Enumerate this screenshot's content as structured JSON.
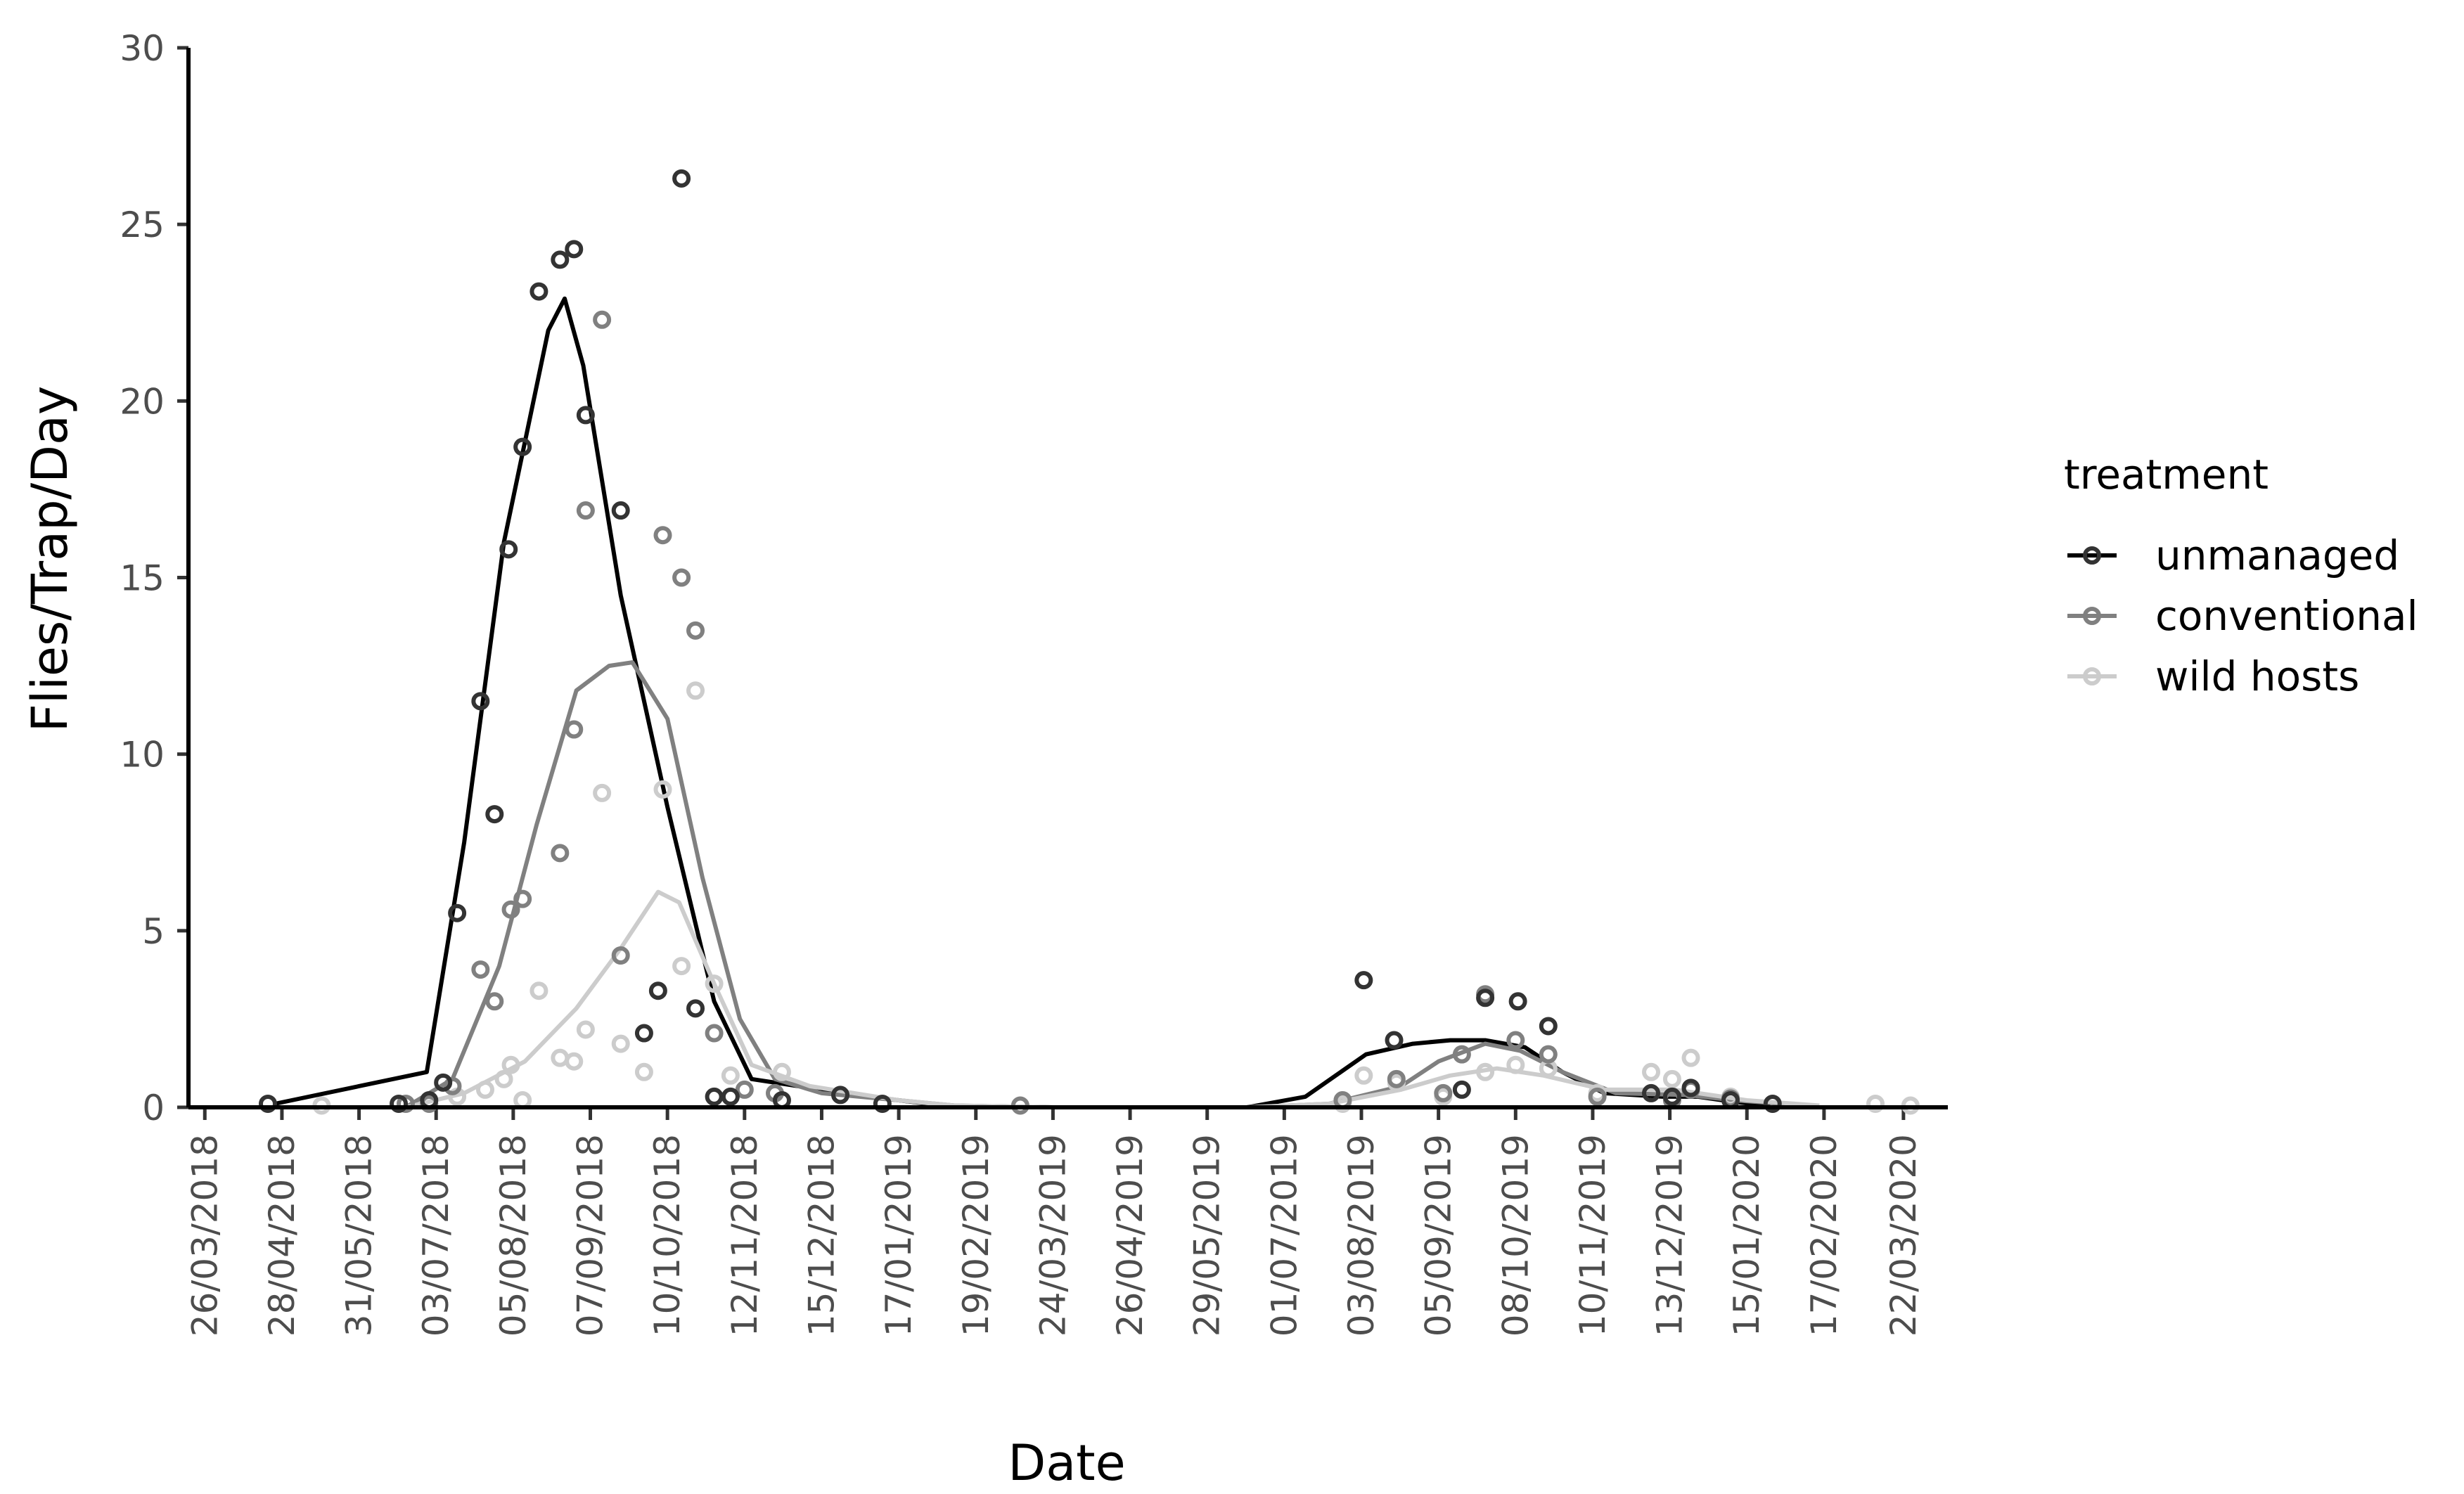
{
  "chart_data": {
    "type": "scatter",
    "xlabel": "Date",
    "ylabel": "Flies/Trap/Day",
    "ylim": [
      0,
      30
    ],
    "yticks": [
      0,
      5,
      10,
      15,
      20,
      25,
      30
    ],
    "xlim": [
      "2018-03-19",
      "2020-04-10"
    ],
    "xticks": [
      "2018-03-26",
      "2018-04-28",
      "2018-05-31",
      "2018-07-03",
      "2018-08-05",
      "2018-09-07",
      "2018-10-10",
      "2018-11-12",
      "2018-12-15",
      "2019-01-17",
      "2019-02-19",
      "2019-03-24",
      "2019-04-26",
      "2019-05-29",
      "2019-07-01",
      "2019-08-03",
      "2019-09-05",
      "2019-10-08",
      "2019-11-10",
      "2019-12-13",
      "2020-01-15",
      "2020-02-17",
      "2020-03-22"
    ],
    "xtick_labels": [
      "26/03/2018",
      "28/04/2018",
      "31/05/2018",
      "03/07/2018",
      "05/08/2018",
      "07/09/2018",
      "10/10/2018",
      "12/11/2018",
      "15/12/2018",
      "17/01/2019",
      "19/02/2019",
      "24/03/2019",
      "26/04/2019",
      "29/05/2019",
      "01/07/2019",
      "03/08/2019",
      "05/09/2019",
      "08/10/2019",
      "10/11/2019",
      "13/12/2019",
      "15/01/2020",
      "17/02/2020",
      "22/03/2020"
    ],
    "grid": false,
    "legend": {
      "title": "treatment",
      "placement": "right"
    },
    "series": [
      {
        "name": "unmanaged",
        "color": "#333333",
        "line_color": "#000000",
        "points": [
          [
            "2018-04-22",
            0.1
          ],
          [
            "2018-06-17",
            0.1
          ],
          [
            "2018-06-30",
            0.2
          ],
          [
            "2018-07-06",
            0.7
          ],
          [
            "2018-07-12",
            5.5
          ],
          [
            "2018-07-22",
            11.5
          ],
          [
            "2018-07-28",
            8.3
          ],
          [
            "2018-08-03",
            15.8
          ],
          [
            "2018-08-09",
            18.7
          ],
          [
            "2018-08-16",
            23.1
          ],
          [
            "2018-08-25",
            24.0
          ],
          [
            "2018-08-31",
            24.3
          ],
          [
            "2018-09-05",
            19.6
          ],
          [
            "2018-09-20",
            16.9
          ],
          [
            "2018-09-30",
            2.1
          ],
          [
            "2018-10-06",
            3.3
          ],
          [
            "2018-10-16",
            26.3
          ],
          [
            "2018-10-22",
            2.8
          ],
          [
            "2018-10-30",
            0.3
          ],
          [
            "2018-11-06",
            0.3
          ],
          [
            "2018-11-28",
            0.2
          ],
          [
            "2018-12-23",
            0.35
          ],
          [
            "2019-01-10",
            0.1
          ],
          [
            "2019-08-04",
            3.6
          ],
          [
            "2019-08-17",
            1.9
          ],
          [
            "2019-09-15",
            0.5
          ],
          [
            "2019-09-25",
            3.1
          ],
          [
            "2019-10-09",
            3.0
          ],
          [
            "2019-10-22",
            2.3
          ],
          [
            "2019-12-05",
            0.4
          ],
          [
            "2019-12-14",
            0.3
          ],
          [
            "2019-12-22",
            0.55
          ],
          [
            "2020-01-08",
            0.2
          ],
          [
            "2020-01-26",
            0.1
          ]
        ],
        "smooth": [
          [
            "2018-04-25",
            0.1
          ],
          [
            "2018-06-29",
            1.0
          ],
          [
            "2018-07-15",
            7.5
          ],
          [
            "2018-08-01",
            16.0
          ],
          [
            "2018-08-20",
            22.0
          ],
          [
            "2018-08-27",
            22.9
          ],
          [
            "2018-09-04",
            21.0
          ],
          [
            "2018-09-20",
            14.5
          ],
          [
            "2018-10-10",
            8.5
          ],
          [
            "2018-10-30",
            3.0
          ],
          [
            "2018-11-15",
            0.8
          ],
          [
            "2018-12-15",
            0.5
          ],
          [
            "2019-01-17",
            0.2
          ],
          [
            "2019-02-05",
            0.05
          ],
          [
            "2019-03-24",
            0.0
          ],
          [
            "2019-04-26",
            0.0
          ],
          [
            "2019-06-15",
            0.0
          ],
          [
            "2019-07-10",
            0.3
          ],
          [
            "2019-08-05",
            1.5
          ],
          [
            "2019-08-25",
            1.8
          ],
          [
            "2019-09-10",
            1.9
          ],
          [
            "2019-09-25",
            1.9
          ],
          [
            "2019-10-12",
            1.7
          ],
          [
            "2019-10-28",
            1.0
          ],
          [
            "2019-11-15",
            0.4
          ],
          [
            "2019-12-10",
            0.3
          ],
          [
            "2019-12-25",
            0.3
          ],
          [
            "2020-01-10",
            0.15
          ],
          [
            "2020-01-25",
            0.05
          ]
        ]
      },
      {
        "name": "conventional",
        "color": "#808080",
        "line_color": "#808080",
        "points": [
          [
            "2018-06-20",
            0.1
          ],
          [
            "2018-06-30",
            0.1
          ],
          [
            "2018-07-10",
            0.6
          ],
          [
            "2018-07-22",
            3.9
          ],
          [
            "2018-07-28",
            3.0
          ],
          [
            "2018-08-04",
            5.6
          ],
          [
            "2018-08-09",
            5.9
          ],
          [
            "2018-08-25",
            7.2
          ],
          [
            "2018-08-31",
            10.7
          ],
          [
            "2018-09-05",
            16.9
          ],
          [
            "2018-09-12",
            22.3
          ],
          [
            "2018-09-20",
            4.3
          ],
          [
            "2018-10-08",
            16.2
          ],
          [
            "2018-10-16",
            15.0
          ],
          [
            "2018-10-22",
            13.5
          ],
          [
            "2018-10-30",
            2.1
          ],
          [
            "2018-11-12",
            0.5
          ],
          [
            "2018-11-25",
            0.4
          ],
          [
            "2019-03-10",
            0.05
          ],
          [
            "2019-07-26",
            0.2
          ],
          [
            "2019-08-18",
            0.8
          ],
          [
            "2019-09-07",
            0.4
          ],
          [
            "2019-09-15",
            1.5
          ],
          [
            "2019-09-25",
            3.2
          ],
          [
            "2019-10-08",
            1.9
          ],
          [
            "2019-10-22",
            1.5
          ],
          [
            "2019-11-12",
            0.3
          ],
          [
            "2019-12-14",
            0.2
          ],
          [
            "2019-12-22",
            0.5
          ],
          [
            "2020-01-08",
            0.25
          ]
        ],
        "smooth": [
          [
            "2018-06-20",
            0.0
          ],
          [
            "2018-07-10",
            0.8
          ],
          [
            "2018-07-30",
            4.0
          ],
          [
            "2018-08-15",
            8.0
          ],
          [
            "2018-09-01",
            11.8
          ],
          [
            "2018-09-15",
            12.5
          ],
          [
            "2018-09-25",
            12.6
          ],
          [
            "2018-10-10",
            11.0
          ],
          [
            "2018-10-25",
            6.5
          ],
          [
            "2018-11-10",
            2.5
          ],
          [
            "2018-11-25",
            0.8
          ],
          [
            "2018-12-15",
            0.4
          ],
          [
            "2019-01-17",
            0.2
          ],
          [
            "2019-02-10",
            0.05
          ],
          [
            "2019-03-24",
            0.0
          ],
          [
            "2019-04-26",
            0.0
          ],
          [
            "2019-06-15",
            0.0
          ],
          [
            "2019-07-20",
            0.1
          ],
          [
            "2019-08-20",
            0.6
          ],
          [
            "2019-09-05",
            1.3
          ],
          [
            "2019-09-25",
            1.8
          ],
          [
            "2019-10-10",
            1.6
          ],
          [
            "2019-10-28",
            1.0
          ],
          [
            "2019-11-20",
            0.4
          ],
          [
            "2019-12-20",
            0.35
          ],
          [
            "2020-01-10",
            0.2
          ],
          [
            "2020-02-10",
            0.05
          ]
        ]
      },
      {
        "name": "wild hosts",
        "color": "#cccccc",
        "line_color": "#cccccc",
        "points": [
          [
            "2018-05-15",
            0.05
          ],
          [
            "2018-07-12",
            0.3
          ],
          [
            "2018-07-24",
            0.5
          ],
          [
            "2018-08-01",
            0.8
          ],
          [
            "2018-08-04",
            1.2
          ],
          [
            "2018-08-09",
            0.2
          ],
          [
            "2018-08-16",
            3.3
          ],
          [
            "2018-08-25",
            1.4
          ],
          [
            "2018-08-31",
            1.3
          ],
          [
            "2018-09-05",
            2.2
          ],
          [
            "2018-09-12",
            8.9
          ],
          [
            "2018-09-20",
            1.8
          ],
          [
            "2018-09-30",
            1.0
          ],
          [
            "2018-10-08",
            9.0
          ],
          [
            "2018-10-16",
            4.0
          ],
          [
            "2018-10-22",
            11.8
          ],
          [
            "2018-10-30",
            3.5
          ],
          [
            "2018-11-06",
            0.9
          ],
          [
            "2018-11-28",
            1.0
          ],
          [
            "2019-07-26",
            0.1
          ],
          [
            "2019-08-04",
            0.9
          ],
          [
            "2019-08-18",
            0.7
          ],
          [
            "2019-09-07",
            0.3
          ],
          [
            "2019-09-25",
            1.0
          ],
          [
            "2019-10-08",
            1.2
          ],
          [
            "2019-10-22",
            1.1
          ],
          [
            "2019-11-12",
            0.4
          ],
          [
            "2019-12-05",
            1.0
          ],
          [
            "2019-12-14",
            0.8
          ],
          [
            "2019-12-22",
            1.4
          ],
          [
            "2020-01-08",
            0.3
          ],
          [
            "2020-01-26",
            0.1
          ],
          [
            "2020-03-10",
            0.1
          ],
          [
            "2020-03-25",
            0.05
          ]
        ],
        "smooth": [
          [
            "2018-06-20",
            0.0
          ],
          [
            "2018-07-15",
            0.4
          ],
          [
            "2018-08-10",
            1.3
          ],
          [
            "2018-09-01",
            2.8
          ],
          [
            "2018-09-20",
            4.5
          ],
          [
            "2018-10-06",
            6.1
          ],
          [
            "2018-10-15",
            5.8
          ],
          [
            "2018-10-30",
            3.5
          ],
          [
            "2018-11-15",
            1.2
          ],
          [
            "2018-12-10",
            0.6
          ],
          [
            "2019-01-17",
            0.2
          ],
          [
            "2019-02-10",
            0.05
          ],
          [
            "2019-03-24",
            0.0
          ],
          [
            "2019-06-15",
            0.0
          ],
          [
            "2019-07-20",
            0.1
          ],
          [
            "2019-08-20",
            0.5
          ],
          [
            "2019-09-10",
            0.9
          ],
          [
            "2019-09-30",
            1.1
          ],
          [
            "2019-10-20",
            0.9
          ],
          [
            "2019-11-15",
            0.5
          ],
          [
            "2019-12-15",
            0.5
          ],
          [
            "2020-01-15",
            0.2
          ],
          [
            "2020-02-15",
            0.05
          ]
        ]
      }
    ]
  }
}
